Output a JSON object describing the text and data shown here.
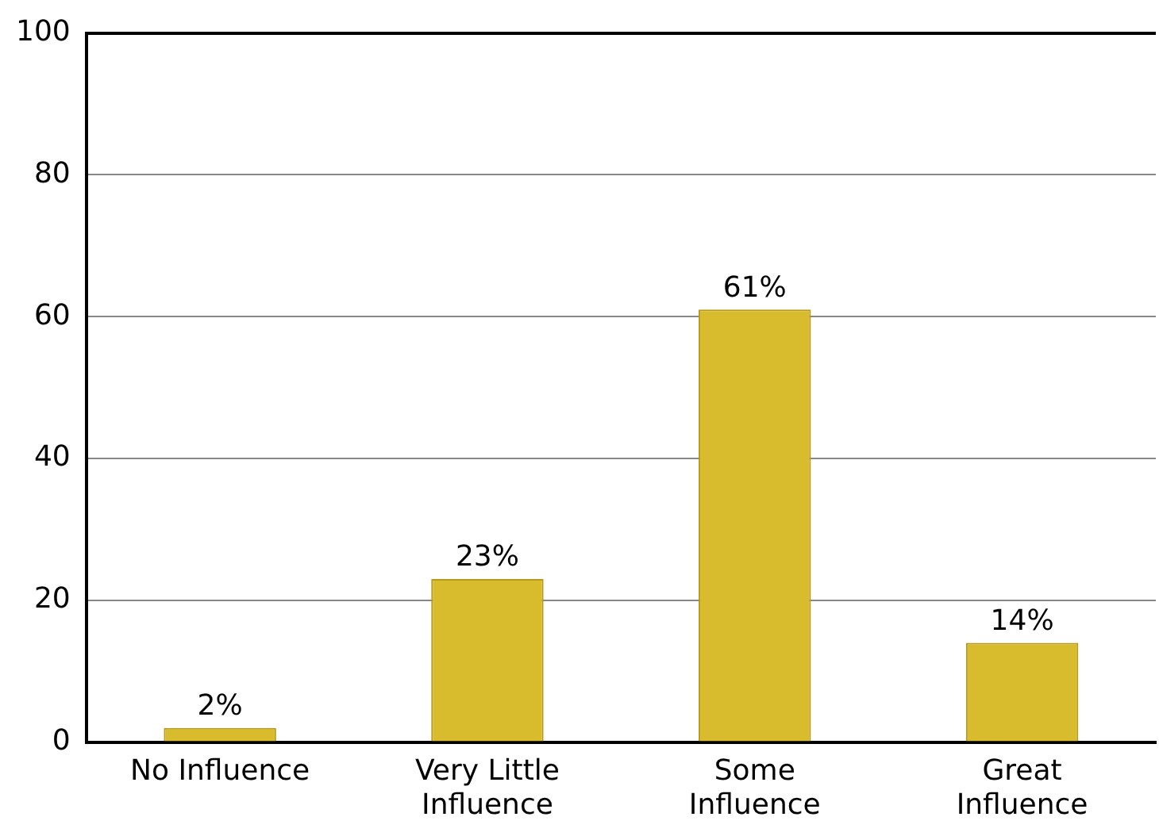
{
  "chart_data": {
    "type": "bar",
    "categories": [
      "No Influence",
      "Very Little Influence",
      "Some Influence",
      "Great Influence"
    ],
    "values": [
      2,
      23,
      61,
      14
    ],
    "value_labels": [
      "2%",
      "23%",
      "61%",
      "14%"
    ],
    "color": "#d9bc2e",
    "ylim": [
      0,
      100
    ],
    "yticks": [
      0,
      20,
      40,
      60,
      80,
      100
    ],
    "grid": "y"
  }
}
